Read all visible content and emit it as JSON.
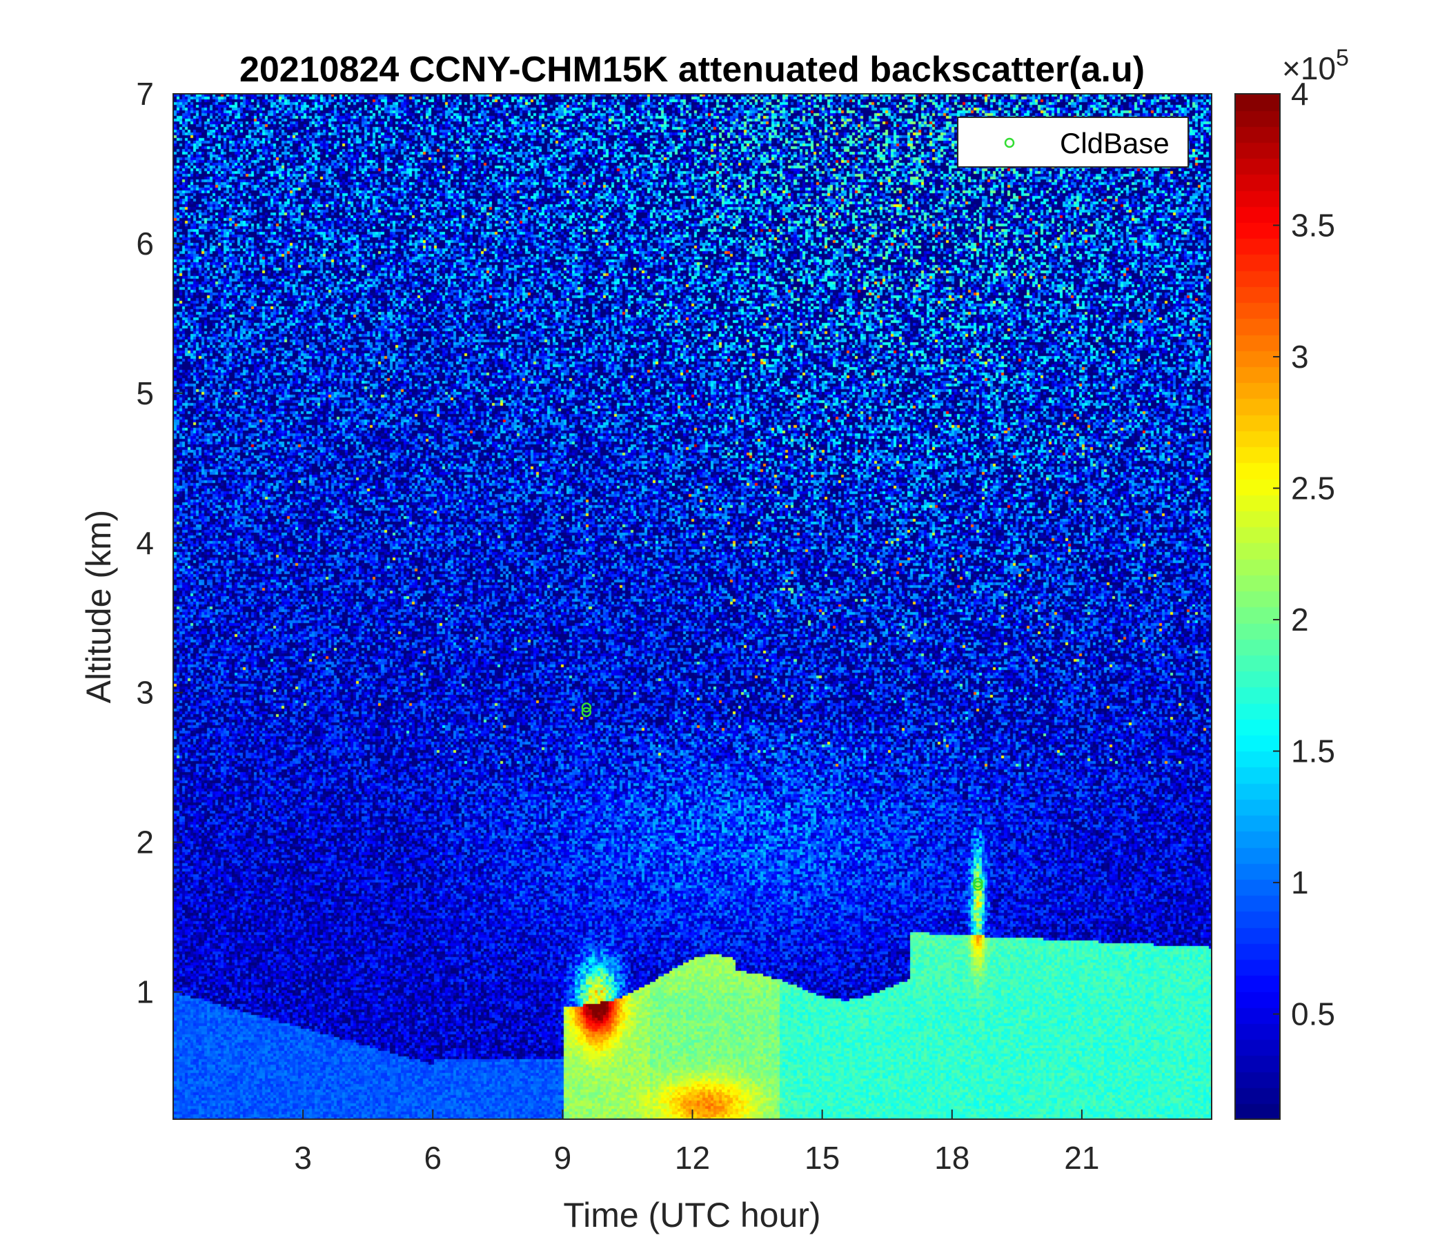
{
  "chart_data": {
    "type": "heatmap",
    "title": "20210824 CCNY-CHM15K attenuated backscatter(a.u)",
    "xlabel": "Time (UTC hour)",
    "ylabel": "Altitude (km)",
    "xlim": [
      0,
      24
    ],
    "ylim": [
      0.15,
      7
    ],
    "xticks": [
      3,
      6,
      9,
      12,
      15,
      18,
      21
    ],
    "yticks": [
      1,
      2,
      3,
      4,
      5,
      6,
      7
    ],
    "colorbar": {
      "colormap": "jet",
      "clim": [
        10000,
        400000
      ],
      "ticks": [
        0.5,
        1,
        1.5,
        2,
        2.5,
        3,
        3.5,
        4
      ],
      "multiplier_base": "×10",
      "multiplier_exponent": "5"
    },
    "legend": {
      "location": "top-right",
      "entries": [
        {
          "label": "CldBase",
          "marker": "o",
          "color": "#33dd33"
        }
      ]
    },
    "series": [
      {
        "name": "CldBase",
        "type": "scatter",
        "x": [
          9.55,
          9.55,
          18.6,
          18.6
        ],
        "y": [
          2.87,
          2.9,
          1.71,
          1.73
        ]
      }
    ]
  }
}
